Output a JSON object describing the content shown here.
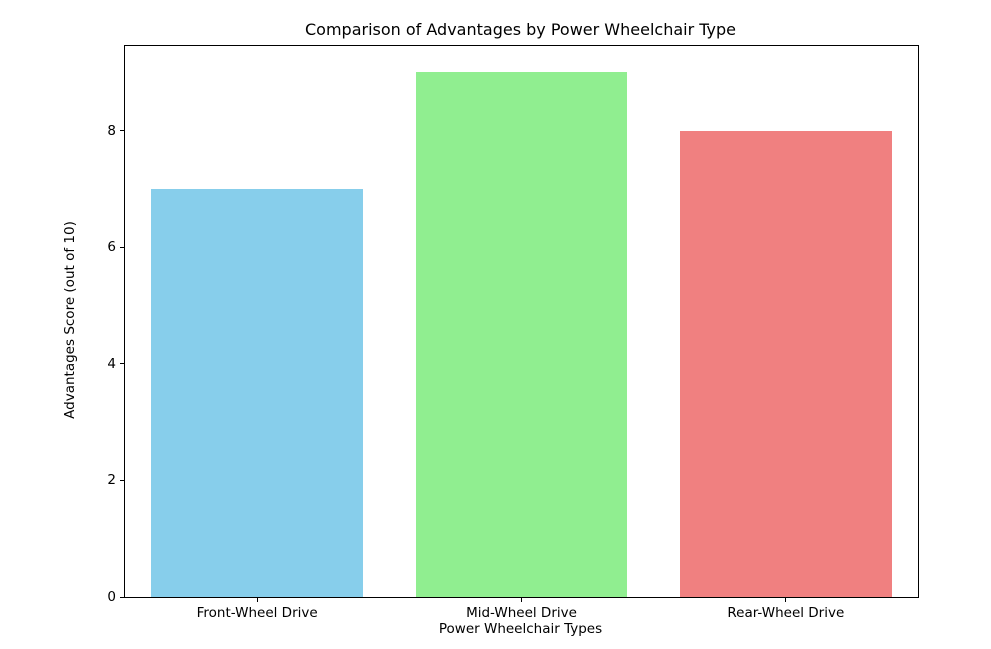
{
  "chart_data": {
    "type": "bar",
    "title": "Comparison of Advantages by Power Wheelchair Type",
    "xlabel": "Power Wheelchair Types",
    "ylabel": "Advantages Score (out of 10)",
    "categories": [
      "Front-Wheel Drive",
      "Mid-Wheel Drive",
      "Rear-Wheel Drive"
    ],
    "values": [
      7,
      9,
      8
    ],
    "bar_colors": [
      "#87CEEB",
      "#90EE90",
      "#F08080"
    ],
    "yticks": [
      0,
      2,
      4,
      6,
      8
    ],
    "ylim": [
      0,
      9.45
    ],
    "bar_width_fraction": 0.8,
    "grid": false,
    "legend": null,
    "background_color": "#ffffff",
    "axis_color": "#000000"
  }
}
